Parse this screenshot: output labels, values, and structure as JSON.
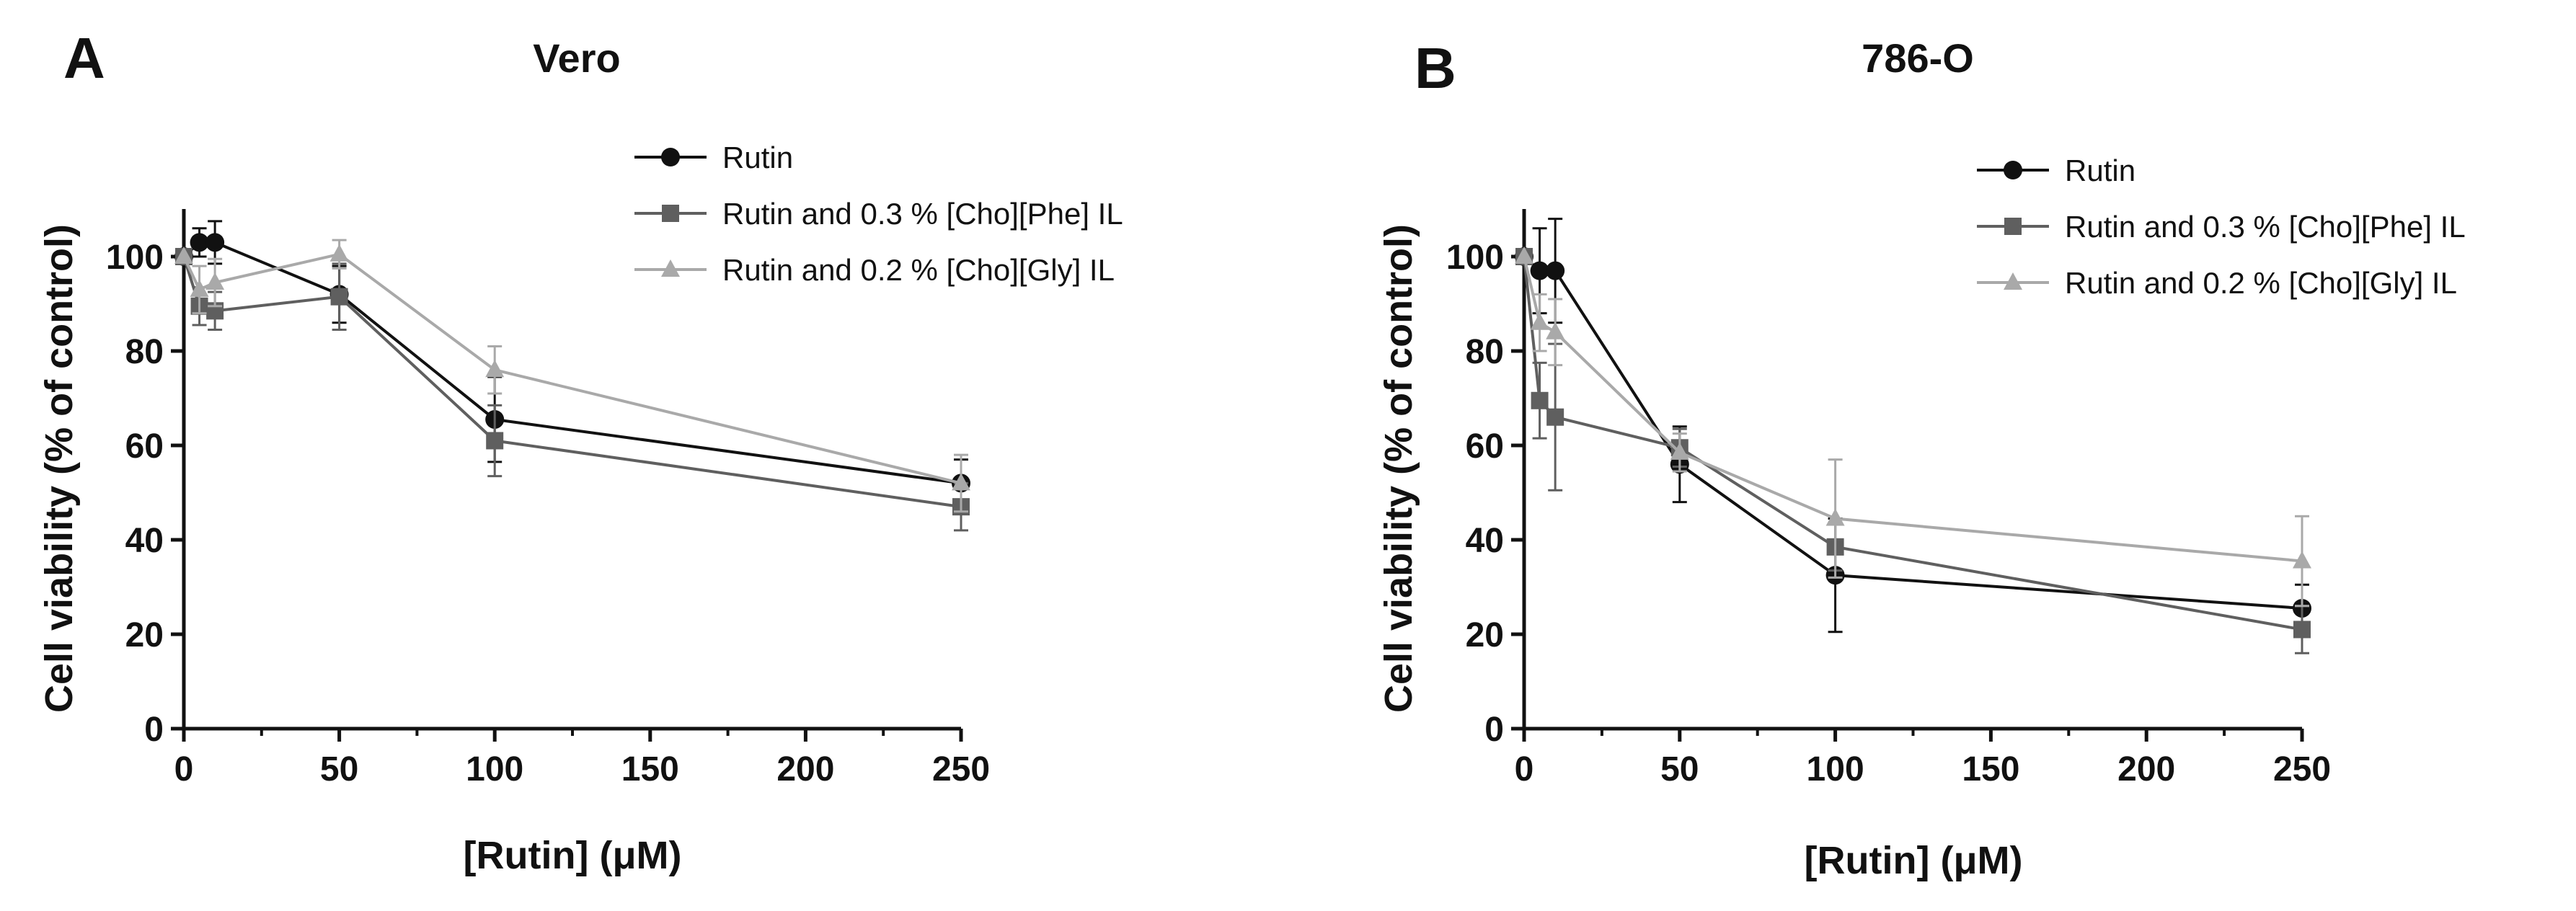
{
  "chart_data": [
    {
      "type": "line",
      "panel": "A",
      "title": "Vero",
      "xlabel": "[Rutin] (μM)",
      "ylabel": "Cell viability (% of control)",
      "xlim": [
        0,
        250
      ],
      "ylim": [
        0,
        110
      ],
      "xticks": [
        0,
        50,
        100,
        150,
        200,
        250
      ],
      "yticks": [
        0,
        20,
        40,
        60,
        80,
        100
      ],
      "grid": false,
      "legend_position": "top-right",
      "series": [
        {
          "name": "Rutin",
          "marker": "circle",
          "color": "#111111",
          "x": [
            0,
            5,
            10,
            50,
            100,
            250
          ],
          "y": [
            100,
            103,
            103,
            92,
            65.5,
            52
          ],
          "err": [
            0,
            3,
            4.5,
            6,
            9,
            5
          ]
        },
        {
          "name": "Rutin and 0.3 % [Cho][Phe] IL",
          "marker": "square",
          "color": "#5f5f5f",
          "x": [
            0,
            5,
            10,
            50,
            100,
            250
          ],
          "y": [
            100,
            89.5,
            88.5,
            91.5,
            61,
            47
          ],
          "err": [
            0,
            4,
            4,
            7,
            7.5,
            5
          ]
        },
        {
          "name": "Rutin and 0.2 % [Cho][Gly] IL",
          "marker": "triangle",
          "color": "#a9a9a9",
          "x": [
            0,
            5,
            10,
            50,
            100,
            250
          ],
          "y": [
            100,
            93,
            94.5,
            100.5,
            76,
            52
          ],
          "err": [
            0,
            5,
            5,
            3,
            5,
            6
          ]
        }
      ]
    },
    {
      "type": "line",
      "panel": "B",
      "title": "786-O",
      "xlabel": "[Rutin] (μM)",
      "ylabel": "Cell viability (% of control)",
      "xlim": [
        0,
        250
      ],
      "ylim": [
        0,
        110
      ],
      "xticks": [
        0,
        50,
        100,
        150,
        200,
        250
      ],
      "yticks": [
        0,
        20,
        40,
        60,
        80,
        100
      ],
      "grid": false,
      "legend_position": "top-right",
      "series": [
        {
          "name": "Rutin",
          "marker": "circle",
          "color": "#111111",
          "x": [
            0,
            5,
            10,
            50,
            100,
            250
          ],
          "y": [
            100,
            97,
            97,
            56,
            32.5,
            25.5
          ],
          "err": [
            0,
            9,
            11,
            8,
            12,
            5
          ]
        },
        {
          "name": "Rutin and 0.3 % [Cho][Phe] IL",
          "marker": "square",
          "color": "#5f5f5f",
          "x": [
            0,
            5,
            10,
            50,
            100,
            250
          ],
          "y": [
            100,
            69.5,
            66,
            59.5,
            38.5,
            21
          ],
          "err": [
            0,
            8,
            15.5,
            4,
            5,
            5
          ]
        },
        {
          "name": "Rutin and 0.2 % [Cho][Gly] IL",
          "marker": "triangle",
          "color": "#a9a9a9",
          "x": [
            0,
            5,
            10,
            50,
            100,
            250
          ],
          "y": [
            100,
            86,
            84,
            58.5,
            44.5,
            35.5
          ],
          "err": [
            0,
            6,
            7,
            4,
            12.5,
            9.5
          ]
        }
      ]
    }
  ]
}
